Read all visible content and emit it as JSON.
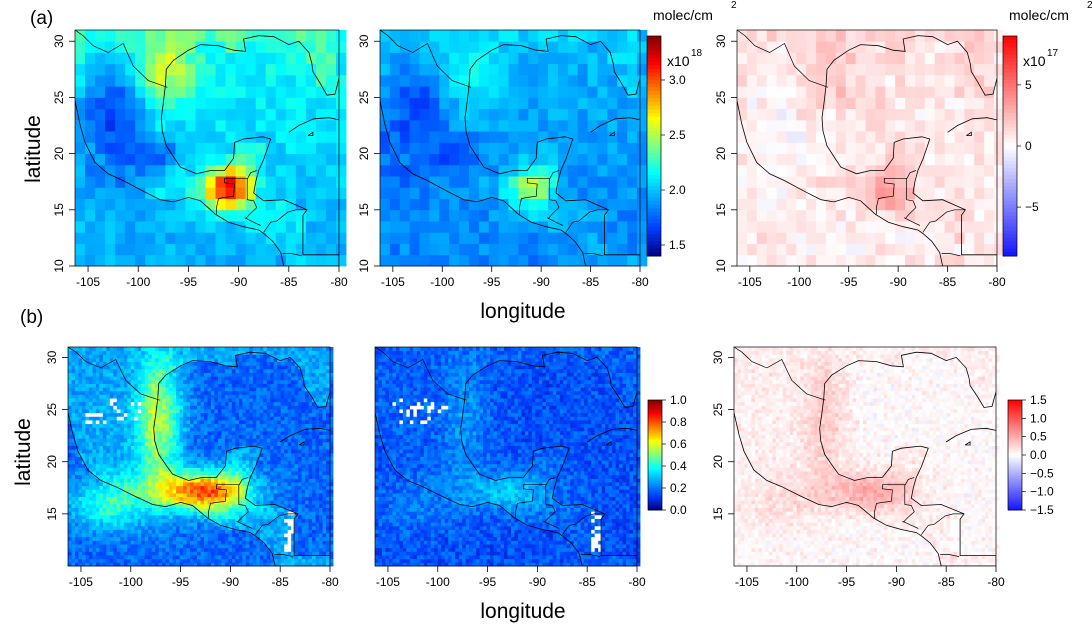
{
  "figure": {
    "label_a": "(a)",
    "label_b": "(b)",
    "ylabel": "latitude",
    "xlabel": "longitude"
  },
  "chart_data": [
    {
      "type": "heatmap",
      "row": "a",
      "panel": 1,
      "palette": "jet",
      "xlim": [
        -106,
        -80
      ],
      "ylim": [
        10,
        31
      ],
      "x_ticks": [
        "-105",
        "-100",
        "-95",
        "-90",
        "-85",
        "-80"
      ],
      "y_ticks": [
        "10",
        "15",
        "20",
        "25",
        "30"
      ],
      "resolution": "coarse"
    },
    {
      "type": "heatmap",
      "row": "a",
      "panel": 2,
      "palette": "jet",
      "xlim": [
        -106,
        -80
      ],
      "ylim": [
        10,
        31
      ],
      "x_ticks": [
        "-105",
        "-100",
        "-95",
        "-90",
        "-85",
        "-80"
      ],
      "y_ticks": [
        "10",
        "15",
        "20",
        "25",
        "30"
      ],
      "resolution": "coarse",
      "colorbar": {
        "title": "molec/cm",
        "title_sup": "2",
        "exponent_base": "x10",
        "exponent": "18",
        "range": [
          1.4,
          3.4
        ],
        "ticks": [
          "1.5",
          "2.0",
          "2.5",
          "3.0"
        ]
      }
    },
    {
      "type": "heatmap",
      "row": "a",
      "panel": 3,
      "palette": "blue-white-red",
      "xlim": [
        -106,
        -80
      ],
      "ylim": [
        10,
        31
      ],
      "x_ticks": [
        "-105",
        "-100",
        "-95",
        "-90",
        "-85",
        "-80"
      ],
      "y_ticks": [
        "10",
        "15",
        "20",
        "25",
        "30"
      ],
      "resolution": "coarse",
      "colorbar": {
        "title": "molec/cm",
        "title_sup": "2",
        "exponent_base": "x10",
        "exponent": "17",
        "range": [
          -9,
          9
        ],
        "ticks": [
          "5",
          "0",
          "−5"
        ]
      }
    },
    {
      "type": "heatmap",
      "row": "b",
      "panel": 1,
      "palette": "jet",
      "xlim": [
        -106,
        -80
      ],
      "ylim": [
        10,
        31
      ],
      "x_ticks": [
        "-105",
        "-100",
        "-95",
        "-90",
        "-85",
        "-80"
      ],
      "y_ticks": [
        "15",
        "20",
        "25",
        "30"
      ],
      "resolution": "fine"
    },
    {
      "type": "heatmap",
      "row": "b",
      "panel": 2,
      "palette": "jet",
      "xlim": [
        -106,
        -80
      ],
      "ylim": [
        10,
        31
      ],
      "x_ticks": [
        "-105",
        "-100",
        "-95",
        "-90",
        "-85",
        "-80"
      ],
      "y_ticks": [],
      "resolution": "fine",
      "colorbar": {
        "range": [
          0,
          1
        ],
        "ticks": [
          "0.0",
          "0.2",
          "0.4",
          "0.6",
          "0.8",
          "1.0"
        ]
      }
    },
    {
      "type": "heatmap",
      "row": "b",
      "panel": 3,
      "palette": "blue-white-red",
      "xlim": [
        -106,
        -80
      ],
      "ylim": [
        10,
        31
      ],
      "x_ticks": [
        "-105",
        "-100",
        "-95",
        "-90",
        "-85",
        "-80"
      ],
      "y_ticks": [
        "15",
        "20",
        "25",
        "30"
      ],
      "resolution": "fine",
      "colorbar": {
        "range": [
          -1.5,
          1.5
        ],
        "ticks": [
          "1.5",
          "1.0",
          "0.5",
          "0.0",
          "−0.5",
          "−1.0",
          "−1.5"
        ]
      }
    }
  ]
}
